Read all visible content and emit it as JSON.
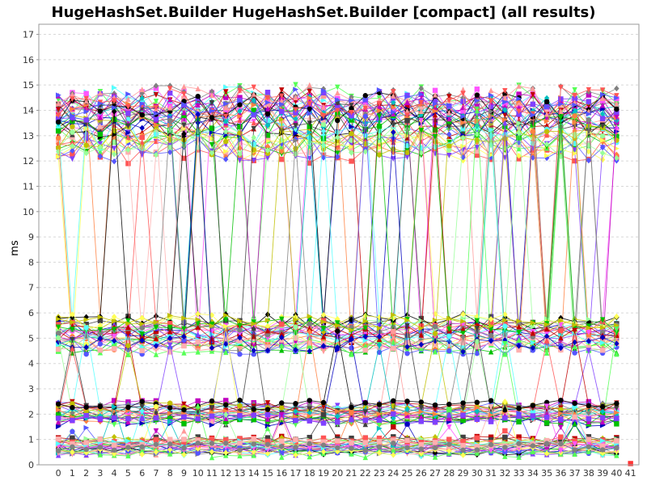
{
  "chart_data": {
    "type": "line",
    "title": "HugeHashSet.Builder HugeHashSet.Builder [compact] (all results)",
    "xlabel": "",
    "ylabel": "ms",
    "x": [
      0,
      1,
      2,
      3,
      4,
      5,
      6,
      7,
      8,
      9,
      10,
      11,
      12,
      13,
      14,
      15,
      16,
      17,
      18,
      19,
      20,
      21,
      22,
      23,
      24,
      25,
      26,
      27,
      28,
      29,
      30,
      31,
      32,
      33,
      34,
      35,
      36,
      37,
      38,
      39,
      40,
      41
    ],
    "xlim": [
      -1.4,
      41.6
    ],
    "ylim": [
      0,
      17.4
    ],
    "yticks": [
      0,
      1,
      2,
      3,
      4,
      5,
      6,
      7,
      8,
      9,
      10,
      11,
      12,
      13,
      14,
      15,
      16,
      17
    ],
    "grid": true,
    "legend": "none",
    "markers": [
      "square",
      "circle",
      "triangle",
      "diamond",
      "triangle-down",
      "triangle-right"
    ],
    "colors": [
      "#ff5555",
      "#5555ff",
      "#55ff55",
      "#ffff55",
      "#ff55ff",
      "#55ffff",
      "#ffafaf",
      "#808080",
      "#c00000",
      "#0000c0",
      "#00c000",
      "#c0c000",
      "#c000c0",
      "#00c0c0",
      "#404040",
      "#ff8040",
      "#8040ff",
      "#000000",
      "#ff9999",
      "#99ff99"
    ],
    "bands": [
      {
        "name": "",
        "center": 13.5,
        "spread": 1.3,
        "count": 42,
        "jumpTo": 5.3
      },
      {
        "name": "",
        "center": 5.2,
        "spread": 0.7,
        "count": 30,
        "jumpTo": 13.4
      },
      {
        "name": "",
        "center": 2.0,
        "spread": 0.45,
        "count": 26,
        "jumpTo": 5.0
      },
      {
        "name": "",
        "center": 0.7,
        "spread": 0.35,
        "count": 30,
        "jumpTo": 1.9
      }
    ],
    "last_point": {
      "x": 41,
      "y": 0.05,
      "color": "#ff3333"
    }
  }
}
